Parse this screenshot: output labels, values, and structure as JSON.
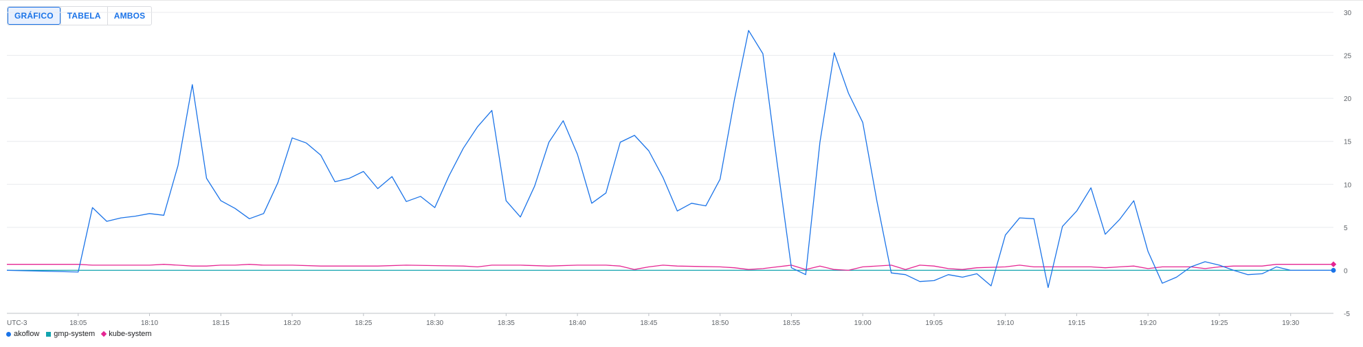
{
  "view_toggle": {
    "chart": "GRÁFICO",
    "table": "TABELA",
    "both": "AMBOS",
    "active": "chart"
  },
  "colors": {
    "akoflow": "#1a73e8",
    "gmp_system": "#12a4af",
    "kube_system": "#e52592",
    "grid": "#e8eaed",
    "axis_text": "#5f6368"
  },
  "timezone_label": "UTC-3",
  "chart_data": {
    "type": "line",
    "x_tick_labels": [
      "18:05",
      "18:10",
      "18:15",
      "18:20",
      "18:25",
      "18:30",
      "18:35",
      "18:40",
      "18:45",
      "18:50",
      "18:55",
      "19:00",
      "19:05",
      "19:10",
      "19:15",
      "19:20",
      "19:25",
      "19:30"
    ],
    "x_range": [
      "18:00",
      "19:33"
    ],
    "y_ticks": [
      -5,
      0,
      5,
      10,
      15,
      20,
      25,
      30
    ],
    "ylim": [
      -5,
      30
    ],
    "y_axis_side": "right",
    "grid": true,
    "legend_position": "bottom-left",
    "series": [
      {
        "name": "akoflow",
        "color": "#1a73e8",
        "marker": "circle",
        "points": [
          [
            "18:00",
            0
          ],
          [
            "18:05",
            -0.2
          ],
          [
            "18:06",
            7.3
          ],
          [
            "18:07",
            5.7
          ],
          [
            "18:08",
            6.1
          ],
          [
            "18:09",
            6.3
          ],
          [
            "18:10",
            6.6
          ],
          [
            "18:11",
            6.4
          ],
          [
            "18:12",
            12.2
          ],
          [
            "18:13",
            21.6
          ],
          [
            "18:14",
            10.7
          ],
          [
            "18:15",
            8.1
          ],
          [
            "18:16",
            7.2
          ],
          [
            "18:17",
            6.0
          ],
          [
            "18:18",
            6.6
          ],
          [
            "18:19",
            10.2
          ],
          [
            "18:20",
            15.4
          ],
          [
            "18:21",
            14.8
          ],
          [
            "18:22",
            13.4
          ],
          [
            "18:23",
            10.3
          ],
          [
            "18:24",
            10.7
          ],
          [
            "18:25",
            11.5
          ],
          [
            "18:26",
            9.5
          ],
          [
            "18:27",
            10.9
          ],
          [
            "18:28",
            8.0
          ],
          [
            "18:29",
            8.6
          ],
          [
            "18:30",
            7.3
          ],
          [
            "18:31",
            11.0
          ],
          [
            "18:32",
            14.2
          ],
          [
            "18:33",
            16.7
          ],
          [
            "18:34",
            18.6
          ],
          [
            "18:35",
            8.1
          ],
          [
            "18:36",
            6.2
          ],
          [
            "18:37",
            9.8
          ],
          [
            "18:38",
            14.9
          ],
          [
            "18:39",
            17.4
          ],
          [
            "18:40",
            13.5
          ],
          [
            "18:41",
            7.8
          ],
          [
            "18:42",
            9.0
          ],
          [
            "18:43",
            14.9
          ],
          [
            "18:44",
            15.7
          ],
          [
            "18:45",
            13.9
          ],
          [
            "18:46",
            10.8
          ],
          [
            "18:47",
            6.9
          ],
          [
            "18:48",
            7.8
          ],
          [
            "18:49",
            7.5
          ],
          [
            "18:50",
            10.6
          ],
          [
            "18:51",
            19.8
          ],
          [
            "18:52",
            27.9
          ],
          [
            "18:53",
            25.2
          ],
          [
            "18:54",
            12.5
          ],
          [
            "18:55",
            0.3
          ],
          [
            "18:56",
            -0.5
          ],
          [
            "18:57",
            14.9
          ],
          [
            "18:58",
            25.3
          ],
          [
            "18:59",
            20.6
          ],
          [
            "19:00",
            17.2
          ],
          [
            "19:01",
            8.0
          ],
          [
            "19:02",
            -0.3
          ],
          [
            "19:03",
            -0.5
          ],
          [
            "19:04",
            -1.3
          ],
          [
            "19:05",
            -1.2
          ],
          [
            "19:06",
            -0.5
          ],
          [
            "19:07",
            -0.8
          ],
          [
            "19:08",
            -0.4
          ],
          [
            "19:09",
            -1.8
          ],
          [
            "19:10",
            4.1
          ],
          [
            "19:11",
            6.1
          ],
          [
            "19:12",
            6.0
          ],
          [
            "19:13",
            -2.0
          ],
          [
            "19:14",
            5.1
          ],
          [
            "19:15",
            6.9
          ],
          [
            "19:16",
            9.6
          ],
          [
            "19:17",
            4.2
          ],
          [
            "19:18",
            5.9
          ],
          [
            "19:19",
            8.1
          ],
          [
            "19:20",
            2.2
          ],
          [
            "19:21",
            -1.5
          ],
          [
            "19:22",
            -0.8
          ],
          [
            "19:23",
            0.4
          ],
          [
            "19:24",
            1.0
          ],
          [
            "19:25",
            0.6
          ],
          [
            "19:26",
            0.0
          ],
          [
            "19:27",
            -0.5
          ],
          [
            "19:28",
            -0.4
          ],
          [
            "19:29",
            0.4
          ],
          [
            "19:30",
            0.0
          ],
          [
            "19:33",
            0.0
          ]
        ]
      },
      {
        "name": "gmp-system",
        "color": "#12a4af",
        "marker": "square",
        "points": [
          [
            "18:00",
            0
          ],
          [
            "19:33",
            0
          ]
        ]
      },
      {
        "name": "kube-system",
        "color": "#e52592",
        "marker": "diamond",
        "points": [
          [
            "18:00",
            0.7
          ],
          [
            "18:05",
            0.7
          ],
          [
            "18:06",
            0.6
          ],
          [
            "18:10",
            0.6
          ],
          [
            "18:11",
            0.7
          ],
          [
            "18:12",
            0.6
          ],
          [
            "18:13",
            0.5
          ],
          [
            "18:14",
            0.5
          ],
          [
            "18:15",
            0.6
          ],
          [
            "18:16",
            0.6
          ],
          [
            "18:17",
            0.7
          ],
          [
            "18:18",
            0.6
          ],
          [
            "18:20",
            0.6
          ],
          [
            "18:22",
            0.5
          ],
          [
            "18:24",
            0.5
          ],
          [
            "18:26",
            0.5
          ],
          [
            "18:28",
            0.6
          ],
          [
            "18:32",
            0.5
          ],
          [
            "18:33",
            0.4
          ],
          [
            "18:34",
            0.6
          ],
          [
            "18:36",
            0.6
          ],
          [
            "18:38",
            0.5
          ],
          [
            "18:40",
            0.6
          ],
          [
            "18:42",
            0.6
          ],
          [
            "18:43",
            0.5
          ],
          [
            "18:44",
            0.1
          ],
          [
            "18:45",
            0.4
          ],
          [
            "18:46",
            0.6
          ],
          [
            "18:47",
            0.5
          ],
          [
            "18:50",
            0.4
          ],
          [
            "18:51",
            0.3
          ],
          [
            "18:52",
            0.1
          ],
          [
            "18:53",
            0.2
          ],
          [
            "18:54",
            0.4
          ],
          [
            "18:55",
            0.6
          ],
          [
            "18:56",
            0.1
          ],
          [
            "18:57",
            0.5
          ],
          [
            "18:58",
            0.1
          ],
          [
            "18:59",
            0.0
          ],
          [
            "19:00",
            0.4
          ],
          [
            "19:02",
            0.6
          ],
          [
            "19:03",
            0.1
          ],
          [
            "19:04",
            0.6
          ],
          [
            "19:05",
            0.5
          ],
          [
            "19:06",
            0.2
          ],
          [
            "19:07",
            0.1
          ],
          [
            "19:08",
            0.3
          ],
          [
            "19:10",
            0.4
          ],
          [
            "19:11",
            0.6
          ],
          [
            "19:12",
            0.4
          ],
          [
            "19:14",
            0.4
          ],
          [
            "19:16",
            0.4
          ],
          [
            "19:17",
            0.3
          ],
          [
            "19:18",
            0.4
          ],
          [
            "19:19",
            0.5
          ],
          [
            "19:20",
            0.2
          ],
          [
            "19:21",
            0.4
          ],
          [
            "19:23",
            0.4
          ],
          [
            "19:24",
            0.2
          ],
          [
            "19:25",
            0.4
          ],
          [
            "19:26",
            0.5
          ],
          [
            "19:28",
            0.5
          ],
          [
            "19:29",
            0.7
          ],
          [
            "19:33",
            0.7
          ]
        ]
      }
    ]
  }
}
